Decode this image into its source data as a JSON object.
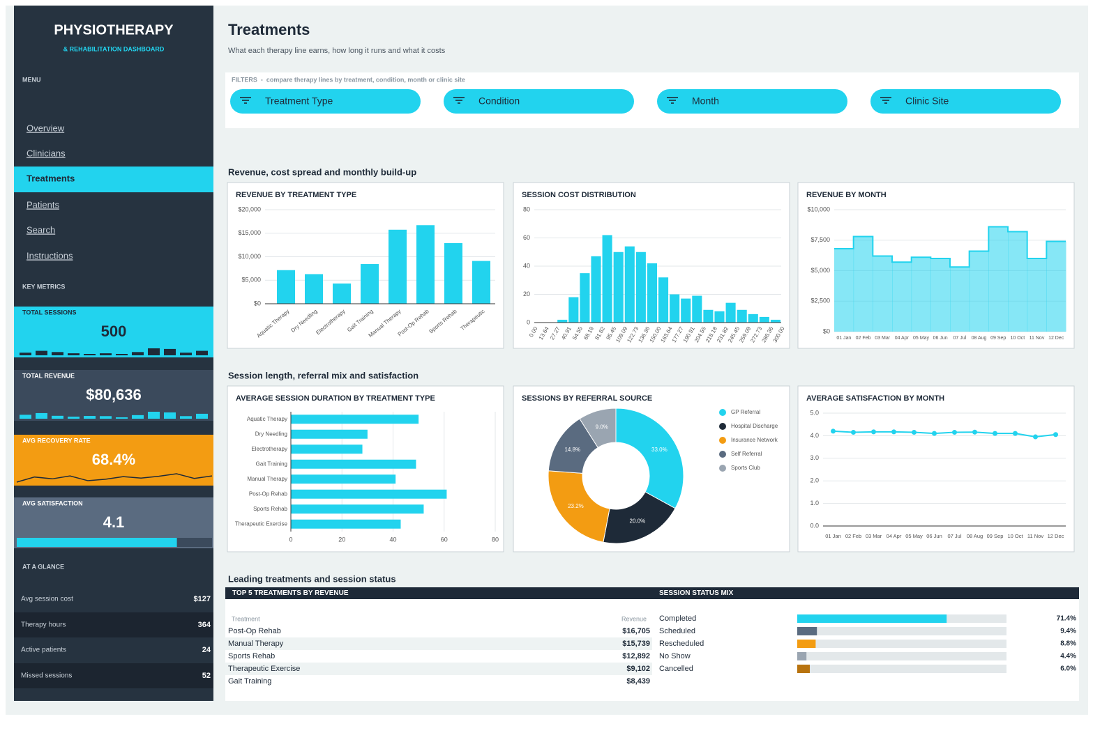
{
  "sidebar": {
    "title": "PHYSIOTHERAPY",
    "subtitle": "& REHABILITATION DASHBOARD",
    "menu_label": "MENU",
    "menu": [
      "Overview",
      "Clinicians",
      "Treatments",
      "Patients",
      "Search",
      "Instructions"
    ],
    "active": 2,
    "metrics_label": "KEY METRICS",
    "kpis": [
      {
        "label": "TOTAL SESSIONS",
        "value": 500,
        "color": "#22d3ee",
        "spark": [
          3,
          6,
          4,
          2,
          1,
          2,
          1,
          4,
          10,
          9,
          3,
          6
        ]
      },
      {
        "label": "TOTAL REVENUE",
        "value": "$80,636",
        "color": "#3b4a5c"
      },
      {
        "label": "AVG RECOVERY RATE",
        "value": "68.4%",
        "color": "#f39c12",
        "trend": [
          67.2,
          68.6,
          68.1,
          68.9,
          67.6,
          68.0,
          68.7,
          68.3,
          68.8,
          69.5,
          68.2,
          68.9
        ]
      },
      {
        "label": "AVG SATISFACTION",
        "value": 4.1,
        "color": "#5a6b80"
      }
    ],
    "glance_label": "AT A GLANCE",
    "glance": [
      {
        "label": "Avg session cost",
        "value": "$127"
      },
      {
        "label": "Therapy hours",
        "value": "364"
      },
      {
        "label": "Active patients",
        "value": "24"
      },
      {
        "label": "Missed sessions",
        "value": "52"
      }
    ]
  },
  "header": {
    "title": "Treatments",
    "subtitle": "What each therapy line earns, how long it runs and what it costs"
  },
  "filters": {
    "label": "FILTERS  -  compare therapy lines by treatment, condition, month or clinic site",
    "items": [
      "Treatment Type",
      "Condition",
      "Month",
      "Clinic Site"
    ]
  },
  "sections": [
    "Revenue, cost spread and monthly build-up",
    "Session length, referral mix and satisfaction",
    "Leading treatments and session status"
  ],
  "chart_data": [
    {
      "type": "bar",
      "title": "REVENUE BY TREATMENT TYPE",
      "color": "#22d3ee",
      "grid": true,
      "categories": [
        "Aquatic Therapy",
        "Dry Needling",
        "Electrotherapy",
        "Gait Training",
        "Manual Therapy",
        "Post-Op Rehab",
        "Sports Rehab",
        "Therapeutic"
      ],
      "values": [
        7150,
        6300,
        4309,
        8439,
        15739,
        16705,
        12892,
        9102
      ],
      "ylim": [
        0,
        20000
      ],
      "yticks": [
        {
          "value": 0,
          "label": "$0"
        },
        {
          "value": 5000,
          "label": "$5,000"
        },
        {
          "value": 10000,
          "label": "$10,000"
        },
        {
          "value": 15000,
          "label": "$15,000"
        },
        {
          "value": 20000,
          "label": "$20,000"
        }
      ]
    },
    {
      "type": "histogram",
      "title": "SESSION COST DISTRIBUTION",
      "color": "#22d3ee",
      "grid": true,
      "bins": [
        0,
        13.64,
        27.27,
        40.91,
        54.55,
        68.18,
        81.82,
        95.45,
        109.09,
        122.73,
        136.36,
        150,
        163.64,
        177.27,
        190.91,
        204.55,
        218.18,
        231.82,
        245.45,
        259.09,
        272.73,
        286.36,
        300
      ],
      "values": [
        0,
        0,
        2,
        18,
        35,
        47,
        62,
        50,
        54,
        50,
        42,
        32,
        20,
        17,
        19,
        9,
        8,
        14,
        9,
        6,
        4,
        2
      ],
      "xlim": [
        0,
        300
      ],
      "xticks": [
        {
          "value": 0,
          "label": "0.00"
        },
        13.64,
        27.27,
        40.91,
        54.55,
        68.18,
        81.82,
        95.45,
        109.09,
        122.73,
        136.36,
        {
          "value": 150,
          "label": "150.00"
        },
        163.64,
        177.27,
        190.91,
        204.55,
        218.18,
        231.82,
        245.45,
        259.09,
        272.73,
        286.36,
        {
          "value": 300,
          "label": "300.00"
        }
      ],
      "ylim": [
        0,
        80
      ],
      "yticks": [
        0,
        20,
        40,
        60,
        80
      ]
    },
    {
      "type": "area",
      "title": "REVENUE BY MONTH",
      "color": "#22d3ee",
      "grid": true,
      "step": true,
      "categories": [
        "01 Jan",
        "02 Feb",
        "03 Mar",
        "04 Apr",
        "05 May",
        "06 Jun",
        "07 Jul",
        "08 Aug",
        "09 Sep",
        "10 Oct",
        "11 Nov",
        "12 Dec"
      ],
      "values": [
        6800,
        7800,
        6200,
        5700,
        6100,
        6000,
        5300,
        6600,
        8600,
        8200,
        6000,
        7400
      ],
      "ylim": [
        0,
        10000
      ],
      "yticks": [
        {
          "value": 0,
          "label": "$0"
        },
        {
          "value": 2500,
          "label": "$2,500"
        },
        {
          "value": 5000,
          "label": "$5,000"
        },
        {
          "value": 7500,
          "label": "$7,500"
        },
        {
          "value": 10000,
          "label": "$10,000"
        }
      ]
    },
    {
      "type": "bar",
      "orientation": "horizontal",
      "title": "AVERAGE SESSION DURATION BY TREATMENT TYPE",
      "color": "#22d3ee",
      "grid": true,
      "categories": [
        "Aquatic Therapy",
        "Dry Needling",
        "Electrotherapy",
        "Gait Training",
        "Manual Therapy",
        "Post-Op Rehab",
        "Sports Rehab",
        "Therapeutic Exercise"
      ],
      "values": [
        50,
        30,
        28,
        49,
        41,
        61,
        52,
        43
      ],
      "xlim": [
        0,
        80
      ],
      "xticks": [
        0,
        20,
        40,
        60,
        80
      ]
    },
    {
      "type": "pie",
      "donut": true,
      "title": "SESSIONS BY REFERRAL SOURCE",
      "legend": "right",
      "categories": [
        "GP Referral",
        "Hospital Discharge",
        "Insurance Network",
        "Self Referral",
        "Sports Club"
      ],
      "values": [
        33.0,
        20.0,
        23.2,
        14.8,
        9.0
      ],
      "value_labels": [
        "33.0%",
        "20.0%",
        "23.2%",
        "14.8%",
        "9.0%"
      ],
      "colors": [
        "#22d3ee",
        "#1e2a38",
        "#f39c12",
        "#5a6b80",
        "#9aa5b1"
      ]
    },
    {
      "type": "line",
      "title": "AVERAGE SATISFACTION BY MONTH",
      "color": "#22d3ee",
      "grid": true,
      "categories": [
        "01 Jan",
        "02 Feb",
        "03 Mar",
        "04 Apr",
        "05 May",
        "06 Jun",
        "07 Jul",
        "08 Aug",
        "09 Sep",
        "10 Oct",
        "11 Nov",
        "12 Dec"
      ],
      "values": [
        4.2,
        4.15,
        4.17,
        4.17,
        4.15,
        4.1,
        4.15,
        4.16,
        4.1,
        4.1,
        3.95,
        4.05
      ],
      "ylim": [
        0,
        5
      ],
      "yticks": [
        {
          "value": 0,
          "label": "0.0"
        },
        {
          "value": 1,
          "label": "1.0"
        },
        {
          "value": 2,
          "label": "2.0"
        },
        {
          "value": 3,
          "label": "3.0"
        },
        {
          "value": 4,
          "label": "4.0"
        },
        {
          "value": 5,
          "label": "5.0"
        }
      ]
    }
  ],
  "top_treatments": {
    "title": "TOP 5 TREATMENTS BY REVENUE",
    "columns": [
      "Treatment",
      "Revenue"
    ],
    "rows": [
      [
        "Post-Op Rehab",
        "$16,705"
      ],
      [
        "Manual Therapy",
        "$15,739"
      ],
      [
        "Sports Rehab",
        "$12,892"
      ],
      [
        "Therapeutic Exercise",
        "$9,102"
      ],
      [
        "Gait Training",
        "$8,439"
      ]
    ]
  },
  "status_mix": {
    "title": "SESSION STATUS MIX",
    "type": "bar",
    "categories": [
      "Completed",
      "Scheduled",
      "Rescheduled",
      "No Show",
      "Cancelled"
    ],
    "values": [
      71.4,
      9.4,
      8.8,
      4.4,
      6.0
    ],
    "value_labels": [
      "71.4%",
      "9.4%",
      "8.8%",
      "4.4%",
      "6.0%"
    ],
    "colors": [
      "#22d3ee",
      "#5a6b80",
      "#f39c12",
      "#9aa5b1",
      "#b8730f"
    ],
    "xlim": [
      0,
      100
    ]
  }
}
